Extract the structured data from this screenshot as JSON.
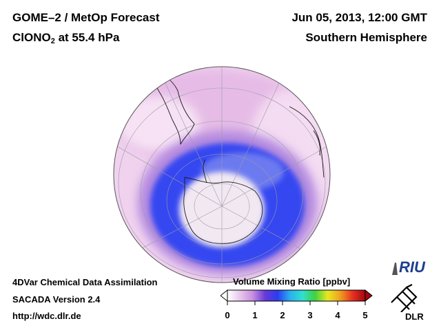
{
  "header": {
    "title_line1": "GOME–2 / MetOp Forecast",
    "species": "ClONO",
    "species_subscript": "2",
    "species_level": " at 55.4 hPa",
    "date": "Jun 05, 2013, 12:00 GMT",
    "hemisphere": "Southern Hemisphere"
  },
  "footer": {
    "line1": "4DVar Chemical Data Assimilation",
    "line2": "SACADA Version 2.4",
    "line3": "http://wdc.dlr.de"
  },
  "colorbar": {
    "title": "Volume Mixing Ratio [ppbv]",
    "ticks": [
      "0",
      "1",
      "2",
      "3",
      "4",
      "5"
    ],
    "min": 0,
    "max": 5,
    "colors": [
      "#ffffff",
      "#e8c8ee",
      "#c890e0",
      "#6a3ad8",
      "#2b3cf0",
      "#2ab0f0",
      "#30e0d0",
      "#40d040",
      "#e8e820",
      "#f0a020",
      "#e83020",
      "#a00810"
    ]
  },
  "logos": {
    "riu": "RIU",
    "dlr": "DLR"
  },
  "map": {
    "projection": "orthographic",
    "center": "South Pole"
  }
}
